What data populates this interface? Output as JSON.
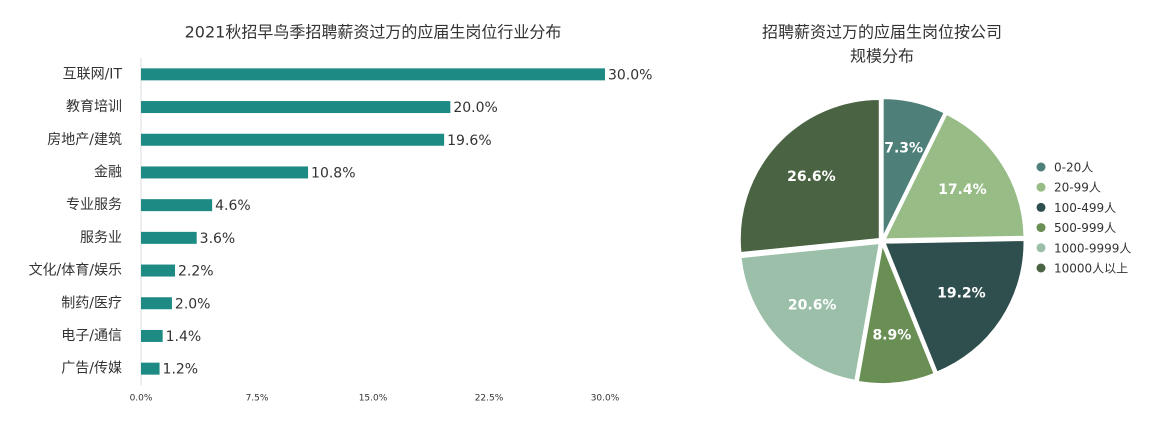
{
  "chart_data": [
    {
      "type": "hbar",
      "title": "2021秋招早鸟季招聘薪资过万的应届生岗位行业分布",
      "categories": [
        "互联网/IT",
        "教育培训",
        "房地产/建筑",
        "金融",
        "专业服务",
        "服务业",
        "文化/体育/娱乐",
        "制药/医疗",
        "电子/通信",
        "广告/传媒"
      ],
      "values": [
        30.0,
        20.0,
        19.6,
        10.8,
        4.6,
        3.6,
        2.2,
        2.0,
        1.4,
        1.2
      ],
      "value_labels": [
        "30.0%",
        "20.0%",
        "19.6%",
        "10.8%",
        "4.6%",
        "3.6%",
        "2.2%",
        "2.0%",
        "1.4%",
        "1.2%"
      ],
      "color": "#1e8a84",
      "xlim": [
        0,
        30
      ],
      "xticks": [
        {
          "value": 0,
          "label": "0.0%"
        },
        {
          "value": 7.5,
          "label": "7.5%"
        },
        {
          "value": 15,
          "label": "15.0%"
        },
        {
          "value": 22.5,
          "label": "22.5%"
        },
        {
          "value": 30,
          "label": "30.0%"
        }
      ]
    },
    {
      "type": "pie",
      "title": [
        "招聘薪资过万的应届生岗位按公司",
        "规模分布"
      ],
      "categories": [
        "0-20人",
        "20-99人",
        "100-499人",
        "500-999人",
        "1000-9999人",
        "10000人以上"
      ],
      "values": [
        7.3,
        17.4,
        19.2,
        8.9,
        20.6,
        26.6
      ],
      "value_labels": [
        "7.3%",
        "17.4%",
        "19.2%",
        "8.9%",
        "20.6%",
        "26.6%"
      ],
      "colors": [
        "#4e7f78",
        "#97bc86",
        "#2e4f4d",
        "#6a8f55",
        "#9bbfa9",
        "#4a6342"
      ],
      "legend": "right"
    }
  ]
}
